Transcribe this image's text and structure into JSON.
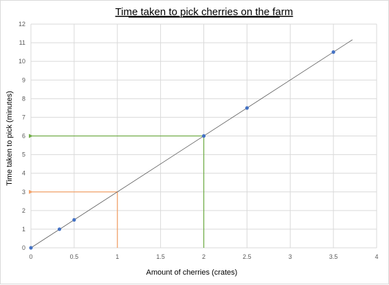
{
  "chart_data": {
    "type": "scatter",
    "title": "Time taken to pick cherries on the farm",
    "xlabel": "Amount of cherries (crates)",
    "ylabel": "Time taken to pick (minutes)",
    "xlim": [
      0,
      4
    ],
    "ylim": [
      0,
      12
    ],
    "xticks": [
      "0",
      "0.5",
      "1",
      "1.5",
      "2",
      "2.5",
      "3",
      "3.5",
      "4"
    ],
    "yticks": [
      "0",
      "1",
      "2",
      "3",
      "4",
      "5",
      "6",
      "7",
      "8",
      "9",
      "10",
      "11",
      "12"
    ],
    "grid": true,
    "points": [
      {
        "x": 0,
        "y": 0
      },
      {
        "x": 0.33,
        "y": 1
      },
      {
        "x": 0.5,
        "y": 1.5
      },
      {
        "x": 2,
        "y": 6
      },
      {
        "x": 2.5,
        "y": 7.5
      },
      {
        "x": 3.5,
        "y": 10.5
      }
    ],
    "trendline": {
      "x0": 0,
      "y0": 0,
      "x1": 3.72,
      "y1": 11.16
    },
    "guides": [
      {
        "x": 1,
        "y": 3,
        "color": "#f4a36b"
      },
      {
        "x": 2,
        "y": 6,
        "color": "#70ad47"
      }
    ],
    "colors": {
      "point": "#4472c4",
      "trendline": "#595959",
      "grid": "#d9d9d9",
      "text": "#595959"
    }
  }
}
